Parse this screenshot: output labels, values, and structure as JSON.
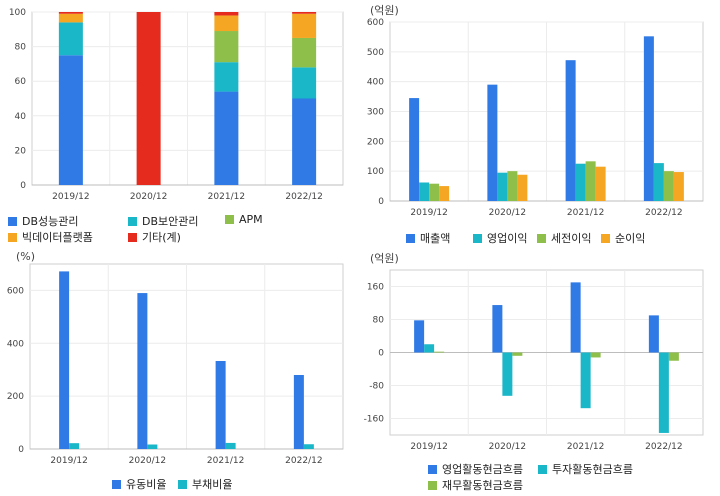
{
  "chart_data": [
    {
      "type": "bar",
      "stacked": true,
      "unit": "",
      "categories": [
        "2019/12",
        "2020/12",
        "2021/12",
        "2022/12"
      ],
      "ylim": [
        0,
        100
      ],
      "yticks": [
        0,
        20,
        40,
        60,
        80,
        100
      ],
      "grid": true,
      "legend_position": "bottom",
      "series": [
        {
          "name": "DB성능관리",
          "color": "#2f7ae5",
          "values": [
            75,
            0,
            54,
            50
          ]
        },
        {
          "name": "DB보안관리",
          "color": "#1ab7c9",
          "values": [
            19,
            0,
            17,
            18
          ]
        },
        {
          "name": "APM",
          "color": "#8dbf4a",
          "values": [
            0,
            0,
            18,
            17
          ]
        },
        {
          "name": "빅데이터플랫폼",
          "color": "#f5a623",
          "values": [
            5,
            0,
            9,
            14
          ]
        },
        {
          "name": "기타(계)",
          "color": "#e42b1e",
          "values": [
            1,
            100,
            2,
            1
          ]
        }
      ]
    },
    {
      "type": "bar",
      "unit": "(억원)",
      "categories": [
        "2019/12",
        "2020/12",
        "2021/12",
        "2022/12"
      ],
      "ylim": [
        0,
        600
      ],
      "yticks": [
        0,
        100,
        200,
        300,
        400,
        500,
        600
      ],
      "grid": true,
      "legend_position": "bottom",
      "series": [
        {
          "name": "매출액",
          "color": "#2f7ae5",
          "values": [
            345,
            390,
            472,
            552
          ]
        },
        {
          "name": "영업이익",
          "color": "#1ab7c9",
          "values": [
            62,
            95,
            125,
            127
          ]
        },
        {
          "name": "세전이익",
          "color": "#8dbf4a",
          "values": [
            58,
            100,
            133,
            100
          ]
        },
        {
          "name": "순이익",
          "color": "#f5a623",
          "values": [
            50,
            88,
            115,
            97
          ]
        }
      ]
    },
    {
      "type": "bar",
      "unit": "(%)",
      "categories": [
        "2019/12",
        "2020/12",
        "2021/12",
        "2022/12"
      ],
      "ylim": [
        0,
        700
      ],
      "yticks": [
        0,
        200,
        400,
        600
      ],
      "grid": true,
      "legend_position": "bottom",
      "series": [
        {
          "name": "유동비율",
          "color": "#2f7ae5",
          "values": [
            672,
            590,
            333,
            280
          ]
        },
        {
          "name": "부채비율",
          "color": "#1ab7c9",
          "values": [
            22,
            17,
            23,
            18
          ]
        }
      ]
    },
    {
      "type": "bar",
      "unit": "(억원)",
      "categories": [
        "2019/12",
        "2020/12",
        "2021/12",
        "2022/12"
      ],
      "ylim": [
        -200,
        200
      ],
      "yticks": [
        -160,
        -80,
        0,
        80,
        160
      ],
      "grid": true,
      "legend_position": "bottom",
      "series": [
        {
          "name": "영업활동현금흐름",
          "color": "#2f7ae5",
          "values": [
            78,
            115,
            170,
            90
          ]
        },
        {
          "name": "투자활동현금흐름",
          "color": "#1ab7c9",
          "values": [
            20,
            -105,
            -135,
            -195
          ]
        },
        {
          "name": "재무활동현금흐름",
          "color": "#8dbf4a",
          "values": [
            2,
            -8,
            -12,
            -20
          ]
        }
      ]
    }
  ]
}
